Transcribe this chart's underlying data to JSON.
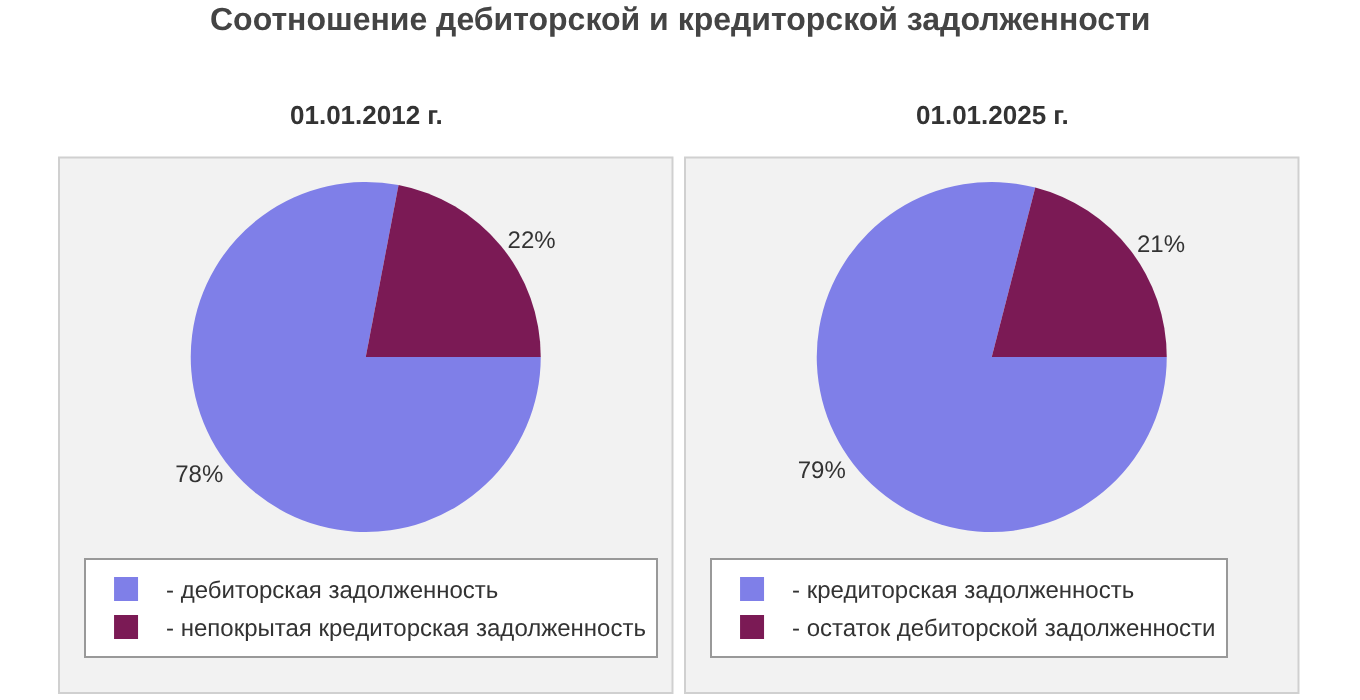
{
  "chart_data": [
    {
      "type": "pie",
      "title": "Соотношение дебиторской и кредиторской задолженности",
      "subtitle": "01.01.2012 г.",
      "categories": [
        "- дебиторская задолженность",
        "- непокрытая кредиторская задолженность"
      ],
      "values": [
        78,
        22
      ],
      "value_labels": [
        "78%",
        "22%"
      ],
      "colors": [
        "#7f7fe8",
        "#7b1a55"
      ],
      "legend": "bottom"
    },
    {
      "type": "pie",
      "subtitle": "01.01.2025 г.",
      "categories": [
        "- кредиторская задолженность",
        "- остаток дебиторской задолженности"
      ],
      "values": [
        79,
        21
      ],
      "value_labels": [
        "79%",
        "21%"
      ],
      "colors": [
        "#7f7fe8",
        "#7b1a55"
      ],
      "legend": "bottom"
    }
  ]
}
